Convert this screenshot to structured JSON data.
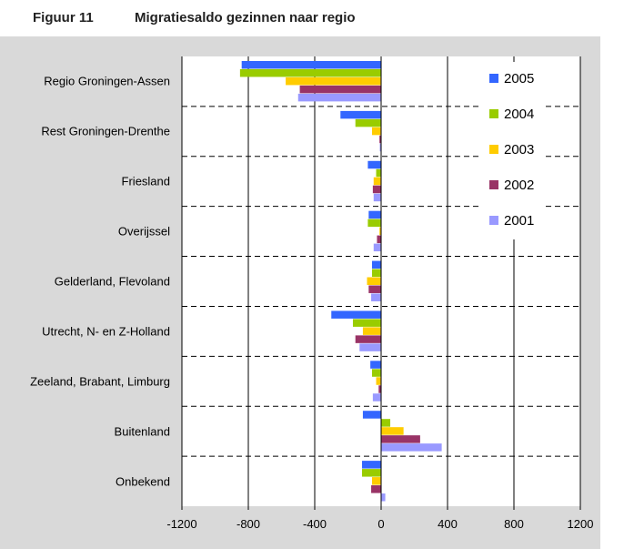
{
  "chart_data": {
    "type": "hbar",
    "figure_label": "Figuur 11",
    "title": "Migratiesaldo gezinnen naar regio",
    "categories": [
      "Regio Groningen-Assen",
      "Rest Groningen-Drenthe",
      "Friesland",
      "Overijssel",
      "Gelderland, Flevoland",
      "Utrecht, N- en Z-Holland",
      "Zeeland, Brabant, Limburg",
      "Buitenland",
      "Onbekend"
    ],
    "series": [
      {
        "name": "2005",
        "color": "#3366ff",
        "values": [
          -840,
          -245,
          -80,
          -75,
          -55,
          -300,
          -65,
          -110,
          -115
        ]
      },
      {
        "name": "2004",
        "color": "#99cc00",
        "values": [
          -850,
          -155,
          -30,
          -80,
          -55,
          -170,
          -55,
          55,
          -115
        ]
      },
      {
        "name": "2003",
        "color": "#ffcc00",
        "values": [
          -575,
          -55,
          -45,
          -10,
          -85,
          -110,
          -30,
          135,
          -55
        ]
      },
      {
        "name": "2002",
        "color": "#993366",
        "values": [
          -490,
          -10,
          -50,
          -25,
          -75,
          -155,
          -15,
          235,
          -60
        ]
      },
      {
        "name": "2001",
        "color": "#9999ff",
        "values": [
          -500,
          -8,
          -45,
          -45,
          -60,
          -130,
          -50,
          365,
          25
        ]
      }
    ],
    "xlim": [
      -1200,
      1200
    ],
    "xticks": [
      -1200,
      -800,
      -400,
      0,
      400,
      800,
      1200
    ],
    "grid": true,
    "legend": "upper right"
  }
}
